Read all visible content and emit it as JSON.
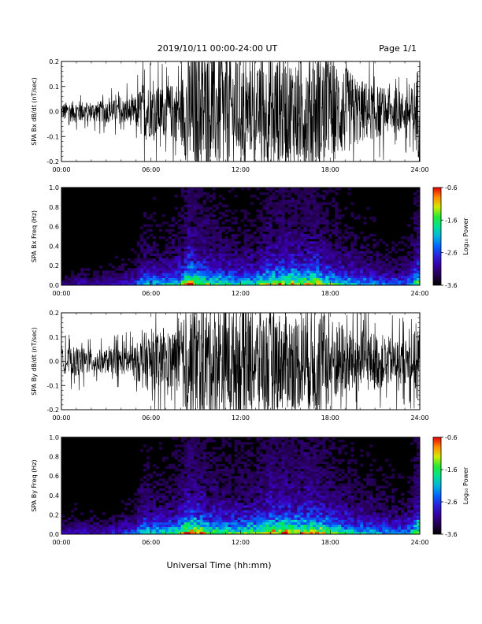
{
  "header": {
    "date_range": "2019/10/11  00:00-24:00 UT",
    "page": "Page 1/1"
  },
  "footer": {
    "xlabel": "Universal Time (hh:mm)"
  },
  "colorbar": {
    "label": "Log₁₀ Power",
    "ticks": [
      "-0.6",
      "-1.6",
      "-2.6",
      "-3.6"
    ]
  },
  "chart_data": [
    {
      "type": "line",
      "ylabel": "SPA Bx dB/dt (nT/sec)",
      "xlim": [
        0,
        24
      ],
      "ylim": [
        -0.2,
        0.2
      ],
      "xticks": [
        "00:00",
        "06:00",
        "12:00",
        "18:00",
        "24:00"
      ],
      "yticks": [
        "0.2",
        "0.1",
        "0.0",
        "-0.1",
        "-0.2"
      ],
      "series": [
        {
          "x": [
            0,
            1,
            2,
            3,
            4,
            5,
            5.5,
            6,
            7,
            8,
            8.5,
            9,
            10,
            11,
            12,
            13,
            14,
            15,
            16,
            17,
            18,
            19,
            20,
            21,
            22,
            23,
            23.5,
            24
          ],
          "amplitude": [
            0.035,
            0.045,
            0.04,
            0.045,
            0.05,
            0.06,
            0.13,
            0.1,
            0.1,
            0.13,
            0.24,
            0.24,
            0.24,
            0.24,
            0.2,
            0.16,
            0.24,
            0.22,
            0.22,
            0.24,
            0.2,
            0.18,
            0.13,
            0.11,
            0.09,
            0.08,
            0.1,
            0.22
          ]
        }
      ]
    },
    {
      "type": "heatmap",
      "ylabel": "SPA Bx Freq (Hz)",
      "xlim": [
        0,
        24
      ],
      "ylim": [
        0,
        1.0
      ],
      "clim": [
        -3.6,
        -0.6
      ],
      "xticks": [
        "00:00",
        "06:00",
        "12:00",
        "18:00",
        "24:00"
      ],
      "yticks": [
        "1.0",
        "0.8",
        "0.6",
        "0.4",
        "0.2",
        "0.0"
      ],
      "activity": {
        "x": [
          0,
          1,
          2,
          3,
          4,
          5,
          5.5,
          6,
          7,
          8,
          8.5,
          9,
          10,
          11,
          12,
          13,
          14,
          15,
          16,
          17,
          18,
          19,
          20,
          21,
          22,
          23,
          23.5,
          24
        ],
        "level": [
          0.15,
          0.2,
          0.2,
          0.2,
          0.25,
          0.3,
          0.5,
          0.45,
          0.45,
          0.55,
          0.85,
          0.75,
          0.6,
          0.55,
          0.5,
          0.55,
          0.7,
          0.75,
          0.7,
          0.75,
          0.6,
          0.5,
          0.45,
          0.4,
          0.35,
          0.35,
          0.45,
          0.8
        ]
      }
    },
    {
      "type": "line",
      "ylabel": "SPA By dB/dt (nT/sec)",
      "xlim": [
        0,
        24
      ],
      "ylim": [
        -0.2,
        0.2
      ],
      "xticks": [
        "00:00",
        "06:00",
        "12:00",
        "18:00",
        "24:00"
      ],
      "yticks": [
        "0.2",
        "0.1",
        "0.0",
        "-0.1",
        "-0.2"
      ],
      "series": [
        {
          "x": [
            0,
            1,
            2,
            3,
            4,
            5,
            5.5,
            6,
            7,
            8,
            8.5,
            9,
            10,
            11,
            12,
            13,
            14,
            15,
            16,
            17,
            18,
            19,
            20,
            21,
            22,
            23,
            23.5,
            24
          ],
          "amplitude": [
            0.05,
            0.06,
            0.05,
            0.05,
            0.055,
            0.07,
            0.12,
            0.12,
            0.12,
            0.14,
            0.24,
            0.24,
            0.24,
            0.24,
            0.24,
            0.2,
            0.22,
            0.2,
            0.2,
            0.22,
            0.18,
            0.16,
            0.13,
            0.12,
            0.1,
            0.09,
            0.1,
            0.22
          ]
        }
      ]
    },
    {
      "type": "heatmap",
      "ylabel": "SPA By Freq (Hz)",
      "xlim": [
        0,
        24
      ],
      "ylim": [
        0,
        1.0
      ],
      "clim": [
        -3.6,
        -0.6
      ],
      "xticks": [
        "00:00",
        "06:00",
        "12:00",
        "18:00",
        "24:00"
      ],
      "yticks": [
        "1.0",
        "0.8",
        "0.6",
        "0.4",
        "0.2",
        "0.0"
      ],
      "activity": {
        "x": [
          0,
          1,
          2,
          3,
          4,
          5,
          5.5,
          6,
          7,
          8,
          8.5,
          9,
          10,
          11,
          12,
          13,
          14,
          15,
          16,
          17,
          18,
          19,
          20,
          21,
          22,
          23,
          23.5,
          24
        ],
        "level": [
          0.2,
          0.25,
          0.22,
          0.22,
          0.28,
          0.35,
          0.55,
          0.5,
          0.5,
          0.6,
          0.9,
          0.8,
          0.65,
          0.6,
          0.6,
          0.65,
          0.8,
          0.8,
          0.75,
          0.8,
          0.65,
          0.55,
          0.5,
          0.45,
          0.4,
          0.4,
          0.5,
          0.85
        ]
      }
    }
  ]
}
